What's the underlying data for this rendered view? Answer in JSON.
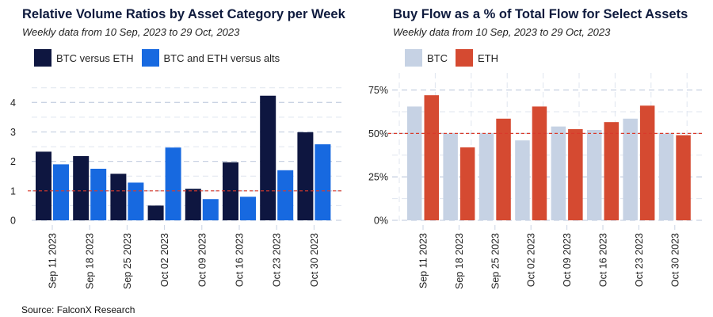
{
  "source": "Source: FalconX Research",
  "chart_data": [
    {
      "type": "bar",
      "title": "Relative Volume Ratios by Asset Category per Week",
      "subtitle": "Weekly data from 10 Sep, 2023 to 29 Oct, 2023",
      "categories": [
        "Sep 11 2023",
        "Sep 18 2023",
        "Sep 25 2023",
        "Oct 02 2023",
        "Oct 09 2023",
        "Oct 16 2023",
        "Oct 23 2023",
        "Oct 30 2023"
      ],
      "series": [
        {
          "name": "BTC versus ETH",
          "color": "#0e1640",
          "values": [
            2.33,
            2.18,
            1.58,
            0.5,
            1.07,
            1.97,
            4.23,
            2.99
          ]
        },
        {
          "name": "BTC and ETH versus alts",
          "color": "#1769e0",
          "values": [
            1.9,
            1.75,
            1.28,
            2.47,
            0.72,
            0.8,
            1.7,
            2.58
          ]
        }
      ],
      "yticks": [
        "0",
        "1",
        "2",
        "3",
        "4"
      ],
      "ylim": [
        0,
        4.6
      ],
      "reference_line": {
        "y": 1,
        "color": "#d93a2b",
        "style": "dashed"
      },
      "grid": true,
      "legend_position": "top-left"
    },
    {
      "type": "bar",
      "title": "Buy Flow as a % of Total Flow for Select Assets",
      "subtitle": "Weekly data from 10 Sep, 2023 to 29 Oct, 2023",
      "categories": [
        "Sep 11 2023",
        "Sep 18 2023",
        "Sep 25 2023",
        "Oct 02 2023",
        "Oct 09 2023",
        "Oct 16 2023",
        "Oct 23 2023",
        "Oct 30 2023"
      ],
      "series": [
        {
          "name": "BTC",
          "color": "#c6d2e4",
          "values": [
            65.5,
            50,
            50,
            46,
            54,
            52,
            58.5,
            49.8
          ]
        },
        {
          "name": "ETH",
          "color": "#d54a31",
          "values": [
            72,
            42,
            58.5,
            65.5,
            52.5,
            56.5,
            66,
            49
          ]
        }
      ],
      "yticks": [
        "0%",
        "25%",
        "50%",
        "75%"
      ],
      "ylim": [
        0,
        78
      ],
      "reference_line": {
        "y": 50,
        "color": "#d93a2b",
        "style": "dashed"
      },
      "grid": true,
      "legend_position": "top-left"
    }
  ]
}
